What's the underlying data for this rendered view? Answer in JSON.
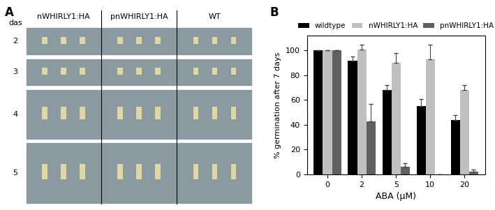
{
  "photo_panel": {
    "label": "A",
    "row_header": "das",
    "rows": [
      "2",
      "3",
      "4",
      "5"
    ],
    "columns": [
      "nWHIRLY1:HA",
      "pnWHIRLY1:HA",
      "WT"
    ]
  },
  "chart_data": {
    "type": "bar",
    "annotations": [
      "B"
    ],
    "x_label": "ABA (µM)",
    "y_label": "% germination after 7 days",
    "categories": [
      "0",
      "2",
      "5",
      "10",
      "20"
    ],
    "series": [
      {
        "name": "wildtype",
        "color": "#000000",
        "values": [
          100,
          92,
          68,
          55,
          44
        ],
        "errors": [
          0,
          3,
          4,
          6,
          4
        ]
      },
      {
        "name": "nWHIRLY1:HA",
        "color": "#c0c0c0",
        "values": [
          100,
          101,
          90,
          93,
          68
        ],
        "errors": [
          0,
          4,
          8,
          12,
          4
        ]
      },
      {
        "name": "pnWHIRLY1:HA",
        "color": "#606060",
        "values": [
          100,
          43,
          6,
          0,
          2
        ],
        "errors": [
          0,
          14,
          3,
          0,
          2
        ]
      }
    ],
    "ylim": [
      0,
      112
    ],
    "yticks": [
      0,
      20,
      40,
      60,
      80,
      100
    ],
    "grid": false,
    "legend": "top"
  }
}
